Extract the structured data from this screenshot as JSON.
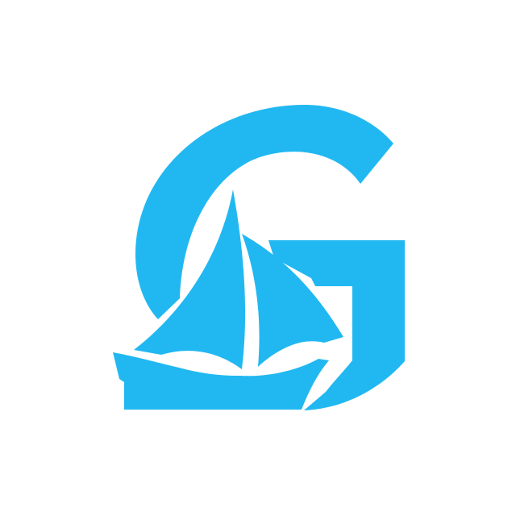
{
  "logo": {
    "name": "G sailboat logo",
    "icon": "letter-g-with-sailboat",
    "colors": {
      "brand": "#21b8f1",
      "background": "#ffffff"
    }
  }
}
